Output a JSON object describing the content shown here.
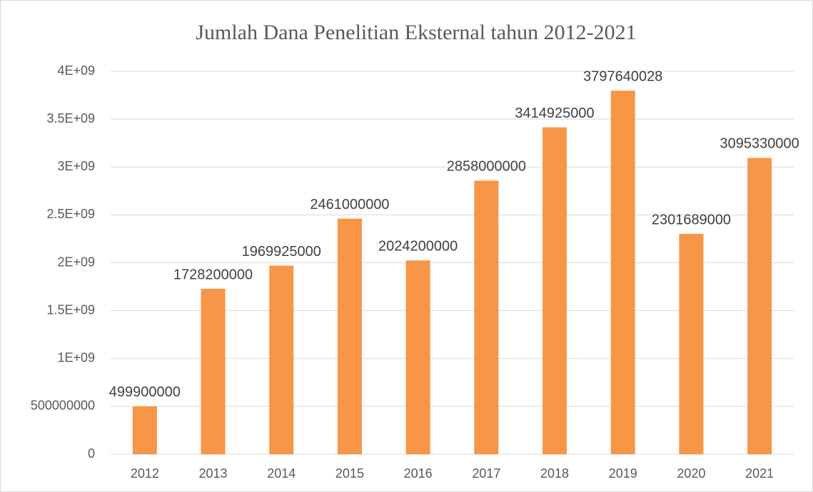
{
  "chart_data": {
    "type": "bar",
    "title": "Jumlah Dana Penelitian Eksternal tahun 2012-2021",
    "categories": [
      "2012",
      "2013",
      "2014",
      "2015",
      "2016",
      "2017",
      "2018",
      "2019",
      "2020",
      "2021"
    ],
    "values": [
      499900000,
      1728200000,
      1969925000,
      2461000000,
      2024200000,
      2858000000,
      3414925000,
      3797640028,
      2301689000,
      3095330000
    ],
    "color": "#f79646",
    "ylim": [
      0,
      4000000000
    ],
    "yticks": [
      0,
      500000000,
      {
        "value": 1000000000,
        "label": "1E+09"
      },
      {
        "value": 1500000000,
        "label": "1.5E+09"
      },
      {
        "value": 2000000000,
        "label": "2E+09"
      },
      {
        "value": 2500000000,
        "label": "2.5E+09"
      },
      {
        "value": 3000000000,
        "label": "3E+09"
      },
      {
        "value": 3500000000,
        "label": "3.5E+09"
      },
      {
        "value": 4000000000,
        "label": "4E+09"
      }
    ],
    "grid": true
  }
}
